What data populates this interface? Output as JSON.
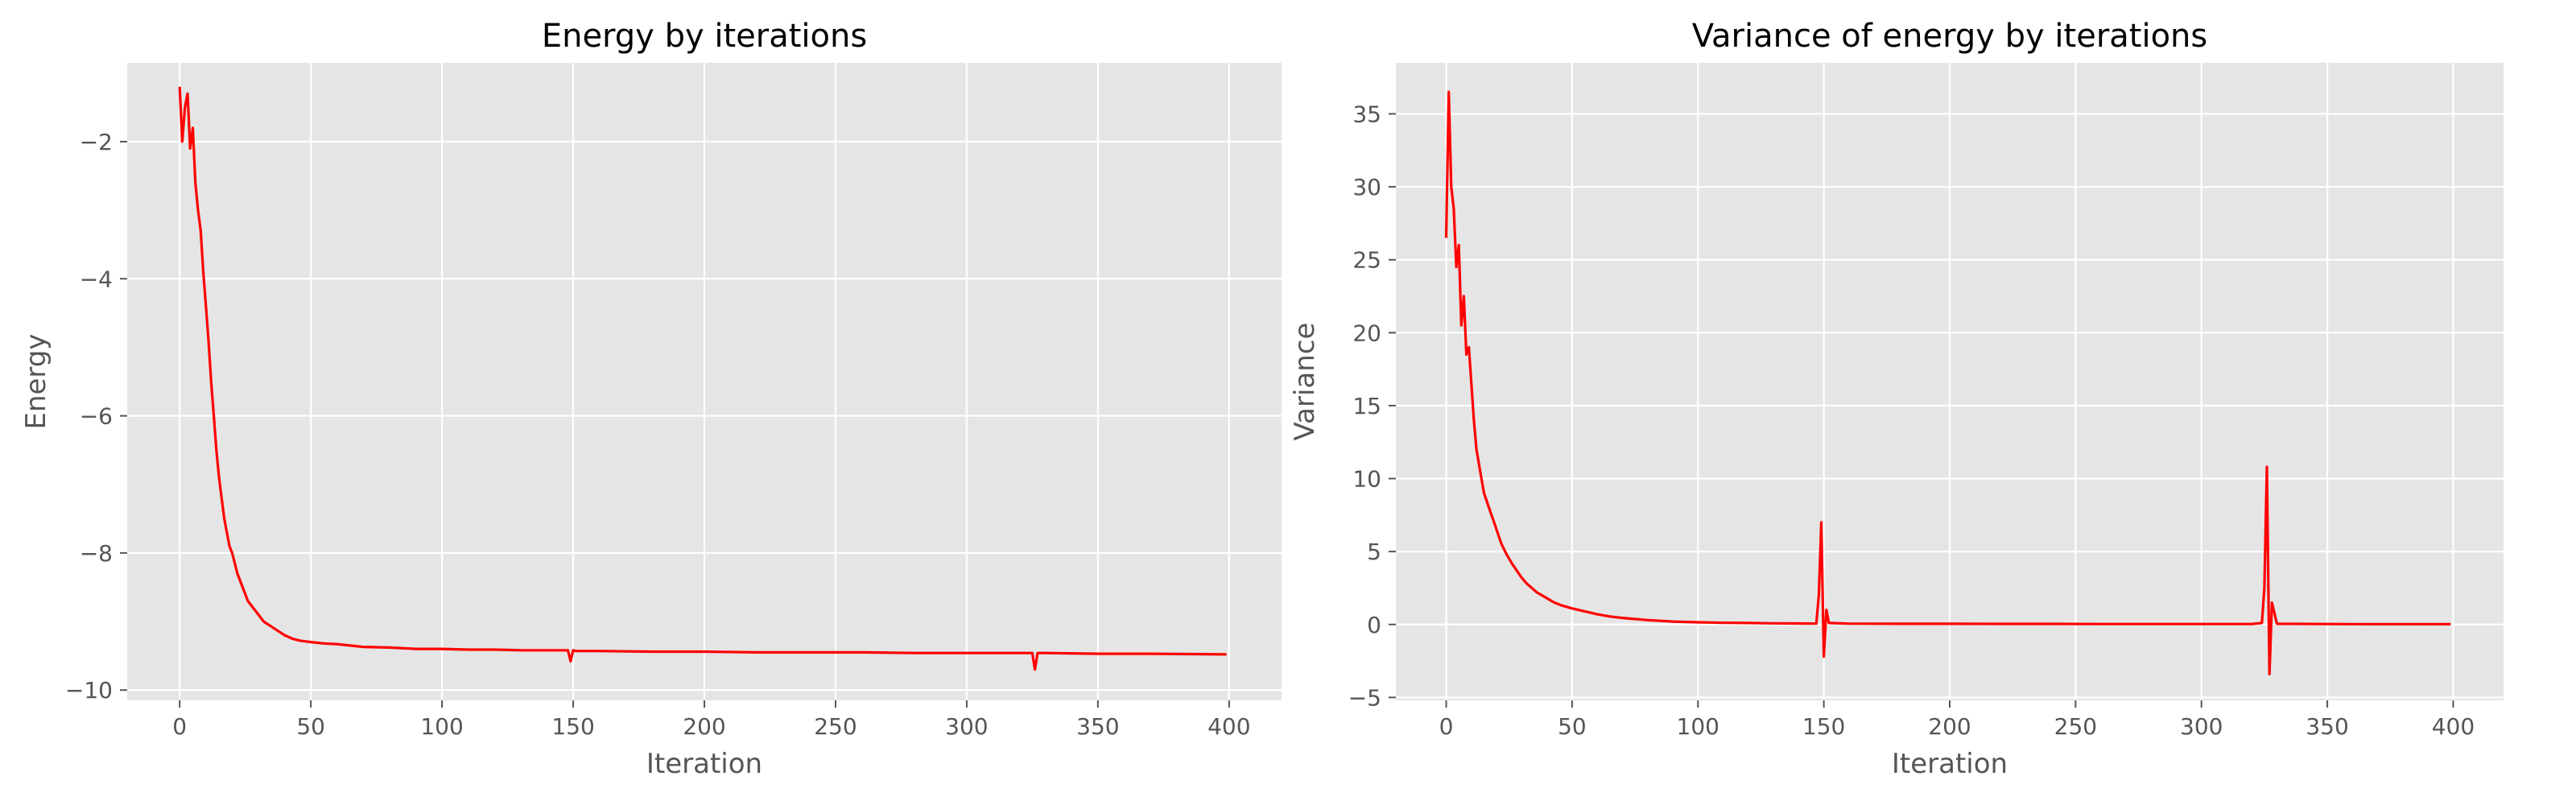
{
  "figure": {
    "background": "#ffffff"
  },
  "style": {
    "axes_background": "#e5e5e5",
    "grid_color": "#ffffff",
    "line_color": "#ff0000",
    "text_color": "#555555",
    "title_color": "#000000",
    "tick_color": "#555555"
  },
  "chart_data": [
    {
      "type": "line",
      "title": "Energy by iterations",
      "xlabel": "Iteration",
      "ylabel": "Energy",
      "xlim": [
        -20,
        420
      ],
      "ylim": [
        -10.15,
        -0.85
      ],
      "xticks": [
        0,
        50,
        100,
        150,
        200,
        250,
        300,
        350,
        400
      ],
      "yticks": [
        -10,
        -8,
        -6,
        -4,
        -2
      ],
      "ytick_labels": [
        "−10",
        "−8",
        "−6",
        "−4",
        "−2"
      ],
      "grid": true,
      "series": [
        {
          "color": "#ff0000",
          "x": [
            0,
            1,
            2,
            3,
            4,
            5,
            6,
            7,
            8,
            9,
            10,
            11,
            12,
            13,
            14,
            15,
            16,
            17,
            18,
            19,
            20,
            22,
            24,
            26,
            28,
            30,
            32,
            34,
            36,
            38,
            40,
            43,
            46,
            50,
            55,
            60,
            65,
            70,
            80,
            90,
            100,
            110,
            120,
            130,
            140,
            148,
            149,
            150,
            151,
            152,
            160,
            180,
            200,
            220,
            240,
            260,
            280,
            300,
            320,
            325,
            326,
            327,
            330,
            350,
            370,
            399
          ],
          "y": [
            -1.2,
            -2.0,
            -1.5,
            -1.3,
            -2.1,
            -1.8,
            -2.6,
            -3.0,
            -3.3,
            -3.9,
            -4.4,
            -4.9,
            -5.5,
            -6.0,
            -6.5,
            -6.9,
            -7.2,
            -7.5,
            -7.7,
            -7.9,
            -8.0,
            -8.3,
            -8.5,
            -8.7,
            -8.8,
            -8.9,
            -9.0,
            -9.05,
            -9.1,
            -9.15,
            -9.2,
            -9.25,
            -9.28,
            -9.3,
            -9.32,
            -9.33,
            -9.35,
            -9.37,
            -9.38,
            -9.4,
            -9.4,
            -9.41,
            -9.41,
            -9.42,
            -9.42,
            -9.42,
            -9.58,
            -9.42,
            -9.43,
            -9.43,
            -9.43,
            -9.44,
            -9.44,
            -9.45,
            -9.45,
            -9.45,
            -9.46,
            -9.46,
            -9.46,
            -9.46,
            -9.7,
            -9.46,
            -9.46,
            -9.47,
            -9.47,
            -9.48
          ]
        }
      ]
    },
    {
      "type": "line",
      "title": "Variance of energy by iterations",
      "xlabel": "Iteration",
      "ylabel": "Variance",
      "xlim": [
        -20,
        420
      ],
      "ylim": [
        -5.2,
        38.5
      ],
      "xticks": [
        0,
        50,
        100,
        150,
        200,
        250,
        300,
        350,
        400
      ],
      "yticks": [
        -5,
        0,
        5,
        10,
        15,
        20,
        25,
        30,
        35
      ],
      "ytick_labels": [
        "−5",
        "0",
        "5",
        "10",
        "15",
        "20",
        "25",
        "30",
        "35"
      ],
      "grid": true,
      "series": [
        {
          "color": "#ff0000",
          "x": [
            0,
            1,
            2,
            3,
            4,
            5,
            6,
            7,
            8,
            9,
            10,
            11,
            12,
            13,
            14,
            15,
            16,
            17,
            18,
            19,
            20,
            22,
            24,
            26,
            28,
            30,
            32,
            34,
            36,
            38,
            40,
            43,
            46,
            50,
            55,
            60,
            65,
            70,
            80,
            90,
            100,
            110,
            120,
            130,
            140,
            147,
            148,
            149,
            150,
            151,
            152,
            160,
            180,
            200,
            220,
            240,
            260,
            280,
            300,
            320,
            324,
            325,
            326,
            327,
            328,
            330,
            350,
            370,
            399
          ],
          "y": [
            26.5,
            36.5,
            30.0,
            28.5,
            24.5,
            26.0,
            20.5,
            22.5,
            18.5,
            19.0,
            16.5,
            14.0,
            12.0,
            11.0,
            10.0,
            9.0,
            8.5,
            8.0,
            7.5,
            7.0,
            6.5,
            5.5,
            4.8,
            4.2,
            3.7,
            3.2,
            2.8,
            2.5,
            2.2,
            2.0,
            1.8,
            1.5,
            1.3,
            1.1,
            0.9,
            0.7,
            0.55,
            0.45,
            0.3,
            0.2,
            0.15,
            0.12,
            0.1,
            0.08,
            0.07,
            0.06,
            2.0,
            7.0,
            -2.2,
            1.0,
            0.1,
            0.06,
            0.05,
            0.05,
            0.04,
            0.04,
            0.03,
            0.03,
            0.03,
            0.03,
            0.1,
            2.5,
            10.8,
            -3.4,
            1.5,
            0.05,
            0.03,
            0.02,
            0.02
          ]
        }
      ]
    }
  ]
}
